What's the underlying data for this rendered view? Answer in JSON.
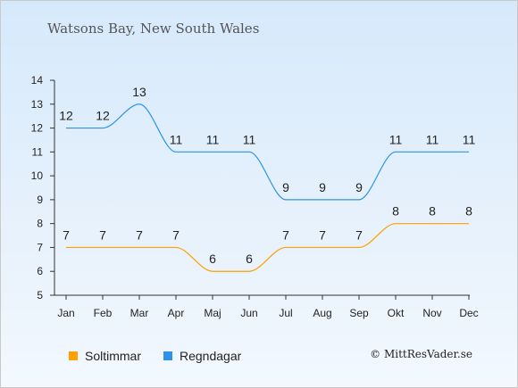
{
  "title": "Watsons Bay, New South Wales",
  "copyright": "© MittResVader.se",
  "colors": {
    "sun": "#ff9f00",
    "rain": "#2e93e6"
  },
  "chart_data": {
    "type": "line",
    "categories": [
      "Jan",
      "Feb",
      "Mar",
      "Apr",
      "Maj",
      "Jun",
      "Jul",
      "Aug",
      "Sep",
      "Okt",
      "Nov",
      "Dec"
    ],
    "ylim": [
      5,
      14
    ],
    "yticks": [
      5,
      6,
      7,
      8,
      9,
      10,
      11,
      12,
      13,
      14
    ],
    "grid": false,
    "legend_position": "bottom-left",
    "series": [
      {
        "name": "Soltimmar",
        "color": "#ff9f00",
        "values": [
          7,
          7,
          7,
          7,
          6,
          6,
          7,
          7,
          7,
          8,
          8,
          8
        ]
      },
      {
        "name": "Regndagar",
        "color": "#2e93e6",
        "values": [
          12,
          12,
          13,
          11,
          11,
          11,
          9,
          9,
          9,
          11,
          11,
          11
        ]
      }
    ]
  }
}
